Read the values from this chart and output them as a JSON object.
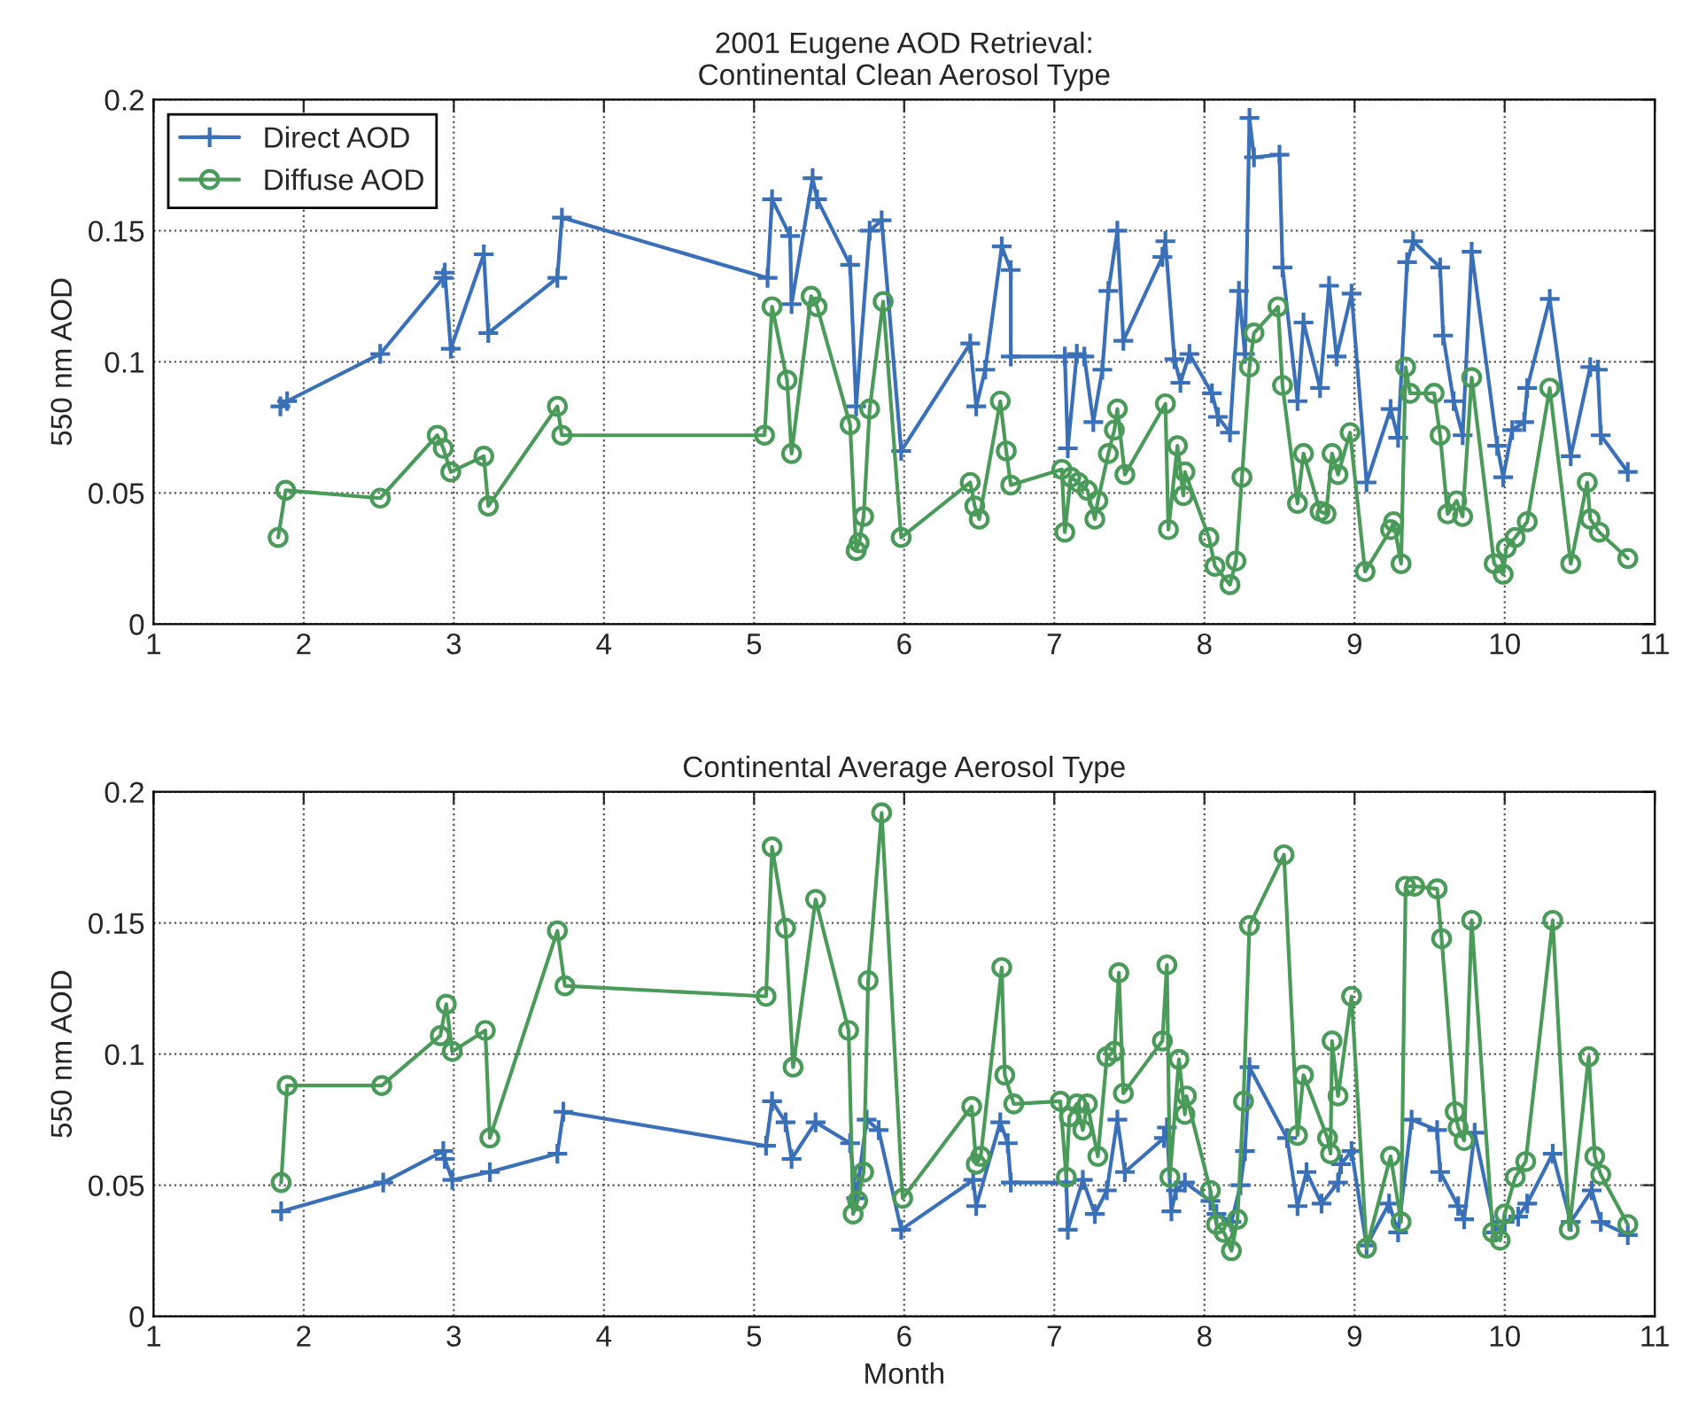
{
  "chart_data": [
    {
      "type": "line",
      "title": "2001 Eugene AOD Retrieval:\nContinental Clean Aerosol Type",
      "ylabel": "550 nm AOD",
      "xlim": [
        1,
        11
      ],
      "ylim": [
        0,
        0.2
      ],
      "xticks": [
        1,
        2,
        3,
        4,
        5,
        6,
        7,
        8,
        9,
        10,
        11
      ],
      "yticks": [
        0,
        0.05,
        0.1,
        0.15,
        0.2
      ],
      "grid": true,
      "legend": "top left",
      "series": [
        {
          "name": "Direct AOD",
          "color": "#3a70b8",
          "marker": "cross",
          "x": [
            1.845,
            1.89,
            2.51,
            2.93,
            2.94,
            2.98,
            3.2,
            3.23,
            3.69,
            3.72,
            5.09,
            5.12,
            5.24,
            5.25,
            5.39,
            5.42,
            5.64,
            5.68,
            5.77,
            5.85,
            5.98,
            6.44,
            6.48,
            6.54,
            6.65,
            6.71,
            6.71,
            7.07,
            7.09,
            7.15,
            7.2,
            7.26,
            7.32,
            7.36,
            7.42,
            7.46,
            7.72,
            7.74,
            7.8,
            7.84,
            7.9,
            8.05,
            8.09,
            8.17,
            8.23,
            8.27,
            8.3,
            8.33,
            8.5,
            8.52,
            8.62,
            8.66,
            8.77,
            8.83,
            8.88,
            8.98,
            9.08,
            9.24,
            9.29,
            9.35,
            9.39,
            9.57,
            9.59,
            9.66,
            9.72,
            9.78,
            9.95,
            9.99,
            10.05,
            10.13,
            10.15,
            10.3,
            10.44,
            10.57,
            10.62,
            10.64,
            10.82
          ],
          "values": [
            0.083,
            0.085,
            0.103,
            0.132,
            0.134,
            0.105,
            0.141,
            0.111,
            0.132,
            0.155,
            0.132,
            0.162,
            0.148,
            0.122,
            0.17,
            0.162,
            0.137,
            0.083,
            0.15,
            0.154,
            0.066,
            0.107,
            0.083,
            0.097,
            0.144,
            0.135,
            0.102,
            0.102,
            0.067,
            0.103,
            0.102,
            0.077,
            0.097,
            0.127,
            0.15,
            0.108,
            0.14,
            0.146,
            0.101,
            0.092,
            0.103,
            0.088,
            0.079,
            0.073,
            0.127,
            0.103,
            0.193,
            0.178,
            0.179,
            0.136,
            0.085,
            0.115,
            0.09,
            0.129,
            0.102,
            0.126,
            0.054,
            0.082,
            0.071,
            0.138,
            0.146,
            0.136,
            0.11,
            0.085,
            0.072,
            0.142,
            0.068,
            0.056,
            0.074,
            0.077,
            0.09,
            0.124,
            0.064,
            0.098,
            0.097,
            0.072,
            0.058
          ]
        },
        {
          "name": "Diffuse AOD",
          "color": "#4a9a5a",
          "marker": "circle",
          "x": [
            1.83,
            1.88,
            2.51,
            2.89,
            2.93,
            2.98,
            3.2,
            3.23,
            3.69,
            3.72,
            5.07,
            5.12,
            5.22,
            5.25,
            5.38,
            5.42,
            5.64,
            5.68,
            5.7,
            5.73,
            5.77,
            5.86,
            5.98,
            6.44,
            6.47,
            6.5,
            6.64,
            6.68,
            6.71,
            7.05,
            7.07,
            7.11,
            7.16,
            7.22,
            7.27,
            7.29,
            7.36,
            7.4,
            7.42,
            7.47,
            7.74,
            7.76,
            7.82,
            7.86,
            7.87,
            8.03,
            8.07,
            8.17,
            8.21,
            8.25,
            8.3,
            8.33,
            8.49,
            8.52,
            8.62,
            8.66,
            8.77,
            8.81,
            8.85,
            8.89,
            8.97,
            9.07,
            9.24,
            9.26,
            9.31,
            9.34,
            9.37,
            9.53,
            9.57,
            9.62,
            9.68,
            9.72,
            9.78,
            9.93,
            9.99,
            10.01,
            10.07,
            10.15,
            10.3,
            10.44,
            10.55,
            10.57,
            10.63,
            10.82
          ],
          "values": [
            0.033,
            0.051,
            0.048,
            0.072,
            0.067,
            0.058,
            0.064,
            0.045,
            0.083,
            0.072,
            0.072,
            0.121,
            0.093,
            0.065,
            0.125,
            0.121,
            0.076,
            0.028,
            0.031,
            0.041,
            0.082,
            0.123,
            0.033,
            0.054,
            0.045,
            0.04,
            0.085,
            0.066,
            0.053,
            0.059,
            0.035,
            0.056,
            0.054,
            0.051,
            0.04,
            0.047,
            0.065,
            0.074,
            0.082,
            0.057,
            0.084,
            0.036,
            0.068,
            0.049,
            0.058,
            0.033,
            0.022,
            0.015,
            0.024,
            0.056,
            0.098,
            0.111,
            0.121,
            0.091,
            0.046,
            0.065,
            0.043,
            0.042,
            0.065,
            0.057,
            0.073,
            0.02,
            0.036,
            0.039,
            0.023,
            0.098,
            0.088,
            0.088,
            0.072,
            0.042,
            0.047,
            0.041,
            0.094,
            0.023,
            0.019,
            0.029,
            0.033,
            0.039,
            0.09,
            0.023,
            0.054,
            0.04,
            0.035,
            0.025
          ]
        }
      ]
    },
    {
      "type": "line",
      "title": "Continental Average Aerosol Type",
      "xlabel": "Month",
      "ylabel": "550 nm AOD",
      "xlim": [
        1,
        11
      ],
      "ylim": [
        0,
        0.2
      ],
      "xticks": [
        1,
        2,
        3,
        4,
        5,
        6,
        7,
        8,
        9,
        10,
        11
      ],
      "yticks": [
        0,
        0.05,
        0.1,
        0.15,
        0.2
      ],
      "grid": true,
      "series": [
        {
          "color": "#3a70b8",
          "marker": "cross",
          "x": [
            1.85,
            2.53,
            2.93,
            2.94,
            2.99,
            3.24,
            3.69,
            3.73,
            5.08,
            5.12,
            5.21,
            5.25,
            5.41,
            5.64,
            5.68,
            5.75,
            5.83,
            5.98,
            6.46,
            6.48,
            6.64,
            6.69,
            6.71,
            7.08,
            7.09,
            7.19,
            7.27,
            7.35,
            7.42,
            7.47,
            7.73,
            7.75,
            7.78,
            7.81,
            7.87,
            8.04,
            8.08,
            8.18,
            8.24,
            8.27,
            8.3,
            8.55,
            8.62,
            8.68,
            8.78,
            8.89,
            8.91,
            8.98,
            9.08,
            9.23,
            9.29,
            9.38,
            9.55,
            9.57,
            9.69,
            9.73,
            9.8,
            9.94,
            10.0,
            10.09,
            10.15,
            10.32,
            10.44,
            10.58,
            10.64,
            10.82
          ],
          "values": [
            0.04,
            0.051,
            0.063,
            0.06,
            0.052,
            0.055,
            0.062,
            0.078,
            0.065,
            0.082,
            0.074,
            0.06,
            0.074,
            0.066,
            0.045,
            0.075,
            0.071,
            0.033,
            0.052,
            0.042,
            0.074,
            0.066,
            0.051,
            0.051,
            0.033,
            0.052,
            0.039,
            0.048,
            0.075,
            0.055,
            0.068,
            0.072,
            0.04,
            0.048,
            0.051,
            0.044,
            0.039,
            0.036,
            0.05,
            0.063,
            0.095,
            0.068,
            0.042,
            0.055,
            0.043,
            0.051,
            0.058,
            0.063,
            0.027,
            0.043,
            0.032,
            0.075,
            0.071,
            0.055,
            0.042,
            0.037,
            0.07,
            0.032,
            0.036,
            0.038,
            0.043,
            0.062,
            0.036,
            0.048,
            0.036,
            0.031
          ]
        },
        {
          "color": "#4a9a5a",
          "marker": "circle",
          "x": [
            1.85,
            1.89,
            2.52,
            2.91,
            2.95,
            2.99,
            3.21,
            3.24,
            3.69,
            3.74,
            5.08,
            5.12,
            5.21,
            5.26,
            5.41,
            5.63,
            5.66,
            5.69,
            5.73,
            5.76,
            5.85,
            5.99,
            6.45,
            6.48,
            6.51,
            6.65,
            6.67,
            6.73,
            7.04,
            7.08,
            7.1,
            7.15,
            7.19,
            7.22,
            7.29,
            7.35,
            7.4,
            7.43,
            7.46,
            7.72,
            7.75,
            7.77,
            7.83,
            7.87,
            7.88,
            8.04,
            8.08,
            8.13,
            8.18,
            8.22,
            8.26,
            8.3,
            8.53,
            8.62,
            8.66,
            8.82,
            8.84,
            8.85,
            8.89,
            8.98,
            9.08,
            9.24,
            9.31,
            9.34,
            9.4,
            9.55,
            9.58,
            9.67,
            9.69,
            9.73,
            9.78,
            9.92,
            9.97,
            10.0,
            10.07,
            10.14,
            10.32,
            10.43,
            10.56,
            10.6,
            10.64,
            10.82
          ],
          "values": [
            0.051,
            0.088,
            0.088,
            0.107,
            0.119,
            0.101,
            0.109,
            0.068,
            0.147,
            0.126,
            0.122,
            0.179,
            0.148,
            0.095,
            0.159,
            0.109,
            0.039,
            0.044,
            0.055,
            0.128,
            0.192,
            0.045,
            0.08,
            0.058,
            0.061,
            0.133,
            0.092,
            0.081,
            0.082,
            0.053,
            0.076,
            0.081,
            0.071,
            0.081,
            0.061,
            0.099,
            0.101,
            0.131,
            0.085,
            0.105,
            0.134,
            0.053,
            0.098,
            0.077,
            0.084,
            0.048,
            0.035,
            0.032,
            0.025,
            0.037,
            0.082,
            0.149,
            0.176,
            0.069,
            0.092,
            0.068,
            0.062,
            0.105,
            0.084,
            0.122,
            0.026,
            0.061,
            0.036,
            0.164,
            0.164,
            0.163,
            0.144,
            0.078,
            0.072,
            0.067,
            0.151,
            0.032,
            0.029,
            0.039,
            0.053,
            0.059,
            0.151,
            0.033,
            0.099,
            0.061,
            0.054,
            0.035
          ]
        }
      ]
    }
  ]
}
